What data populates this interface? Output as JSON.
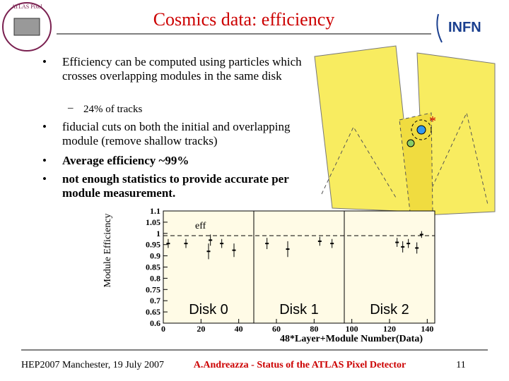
{
  "header": {
    "title": "Cosmics data: efficiency"
  },
  "bullets": [
    {
      "text": "Efficiency can be computed using particles which crosses overlapping modules in the same disk",
      "sub": [
        "24% of tracks"
      ]
    },
    {
      "text": "fiducial cuts on both the initial and overlapping module (remove shallow tracks)"
    },
    {
      "text": "Average efficiency ~99%"
    },
    {
      "text": "not enough statistics to provide accurate per module measurement."
    }
  ],
  "chart_data": {
    "type": "scatter",
    "y_label": "Module Efficiency",
    "x_label": "48*Layer+Module Number(Data)",
    "legend": "eff",
    "xlim": [
      0,
      144
    ],
    "ylim": [
      0.6,
      1.1
    ],
    "xticks": [
      0,
      20,
      40,
      60,
      80,
      100,
      120,
      140
    ],
    "yticks": [
      0.6,
      0.65,
      0.7,
      0.75,
      0.8,
      0.85,
      0.9,
      0.95,
      1,
      1.05,
      1.1
    ],
    "disk_labels": [
      "Disk 0",
      "Disk 1",
      "Disk 2"
    ],
    "disk_label_x": [
      24,
      72,
      120
    ],
    "disk_boundaries": [
      48,
      96
    ],
    "fit_value": 0.99,
    "color": "#000000",
    "x": [
      2.6,
      12,
      24,
      25,
      31,
      37.5,
      55,
      66,
      83,
      89.5,
      124,
      127,
      130,
      134.5,
      137
    ],
    "values": [
      0.955,
      0.955,
      0.92,
      0.97,
      0.955,
      0.925,
      0.955,
      0.93,
      0.965,
      0.955,
      0.96,
      0.94,
      0.955,
      0.935,
      0.995
    ],
    "errors": [
      0.02,
      0.02,
      0.035,
      0.025,
      0.02,
      0.03,
      0.025,
      0.035,
      0.02,
      0.02,
      0.02,
      0.025,
      0.02,
      0.025,
      0.015
    ]
  },
  "footer": {
    "left": "HEP2007 Manchester, 19 July 2007",
    "center": "A.Andreazza - Status of the ATLAS Pixel Detector",
    "page": "11"
  }
}
